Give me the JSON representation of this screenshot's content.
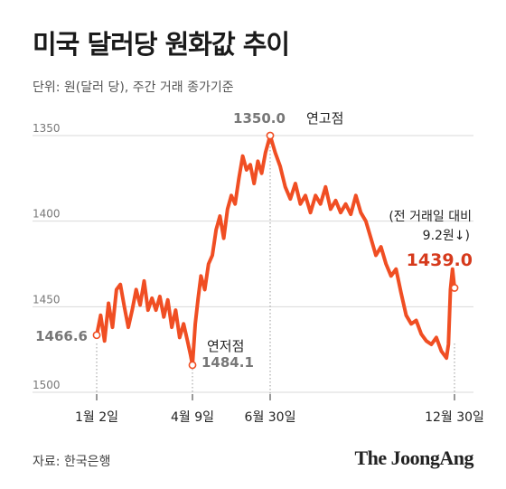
{
  "header": {
    "title": "미국 달러당 원화값 추이",
    "subtitle": "단위: 원(달러 당), 주간 거래 종가기준"
  },
  "footer": {
    "source": "자료: 한국은행",
    "logo": "The JoongAng"
  },
  "colors": {
    "line": "#f04e23",
    "highlight": "#d63a1c",
    "grid": "#d9d9d9",
    "guide": "#999999",
    "text": "#333333"
  },
  "chart_data": {
    "type": "line",
    "y_axis": {
      "inverted": true,
      "ylim": [
        1350,
        1500
      ],
      "ticks": [
        "1350",
        "1400",
        "1450",
        "1500"
      ],
      "grid": true
    },
    "x_ticks": [
      "1월 2일",
      "4월 9일",
      "6월 30일",
      "12월 30일"
    ],
    "x_tick_dates": [
      "2025-01-02",
      "2025-04-09",
      "2025-06-30",
      "2025-12-30"
    ],
    "series": [
      {
        "points": [
          [
            "2025-01-02",
            1466.6
          ],
          [
            "2025-01-06",
            1455
          ],
          [
            "2025-01-10",
            1470
          ],
          [
            "2025-01-14",
            1448
          ],
          [
            "2025-01-18",
            1462
          ],
          [
            "2025-01-22",
            1440
          ],
          [
            "2025-01-26",
            1437
          ],
          [
            "2025-01-30",
            1450
          ],
          [
            "2025-02-03",
            1462
          ],
          [
            "2025-02-07",
            1452
          ],
          [
            "2025-02-11",
            1440
          ],
          [
            "2025-02-15",
            1449
          ],
          [
            "2025-02-19",
            1435
          ],
          [
            "2025-02-23",
            1452
          ],
          [
            "2025-02-27",
            1445
          ],
          [
            "2025-03-03",
            1452
          ],
          [
            "2025-03-07",
            1444
          ],
          [
            "2025-03-11",
            1456
          ],
          [
            "2025-03-15",
            1446
          ],
          [
            "2025-03-19",
            1462
          ],
          [
            "2025-03-23",
            1452
          ],
          [
            "2025-03-27",
            1468
          ],
          [
            "2025-03-31",
            1460
          ],
          [
            "2025-04-04",
            1470
          ],
          [
            "2025-04-07",
            1478
          ],
          [
            "2025-04-09",
            1484.1
          ],
          [
            "2025-04-12",
            1460
          ],
          [
            "2025-04-15",
            1445
          ],
          [
            "2025-04-18",
            1432
          ],
          [
            "2025-04-22",
            1440
          ],
          [
            "2025-04-26",
            1425
          ],
          [
            "2025-04-30",
            1420
          ],
          [
            "2025-05-04",
            1405
          ],
          [
            "2025-05-08",
            1397
          ],
          [
            "2025-05-12",
            1410
          ],
          [
            "2025-05-16",
            1393
          ],
          [
            "2025-05-20",
            1385
          ],
          [
            "2025-05-24",
            1390
          ],
          [
            "2025-05-28",
            1375
          ],
          [
            "2025-06-01",
            1362
          ],
          [
            "2025-06-05",
            1370
          ],
          [
            "2025-06-09",
            1367
          ],
          [
            "2025-06-13",
            1378
          ],
          [
            "2025-06-17",
            1365
          ],
          [
            "2025-06-21",
            1372
          ],
          [
            "2025-06-25",
            1360
          ],
          [
            "2025-06-30",
            1350.0
          ],
          [
            "2025-07-05",
            1360
          ],
          [
            "2025-07-10",
            1368
          ],
          [
            "2025-07-15",
            1380
          ],
          [
            "2025-07-20",
            1387
          ],
          [
            "2025-07-25",
            1378
          ],
          [
            "2025-07-30",
            1390
          ],
          [
            "2025-08-04",
            1385
          ],
          [
            "2025-08-09",
            1395
          ],
          [
            "2025-08-14",
            1385
          ],
          [
            "2025-08-19",
            1390
          ],
          [
            "2025-08-24",
            1380
          ],
          [
            "2025-08-29",
            1393
          ],
          [
            "2025-09-03",
            1388
          ],
          [
            "2025-09-08",
            1395
          ],
          [
            "2025-09-13",
            1390
          ],
          [
            "2025-09-18",
            1396
          ],
          [
            "2025-09-23",
            1385
          ],
          [
            "2025-09-28",
            1395
          ],
          [
            "2025-10-03",
            1400
          ],
          [
            "2025-10-08",
            1410
          ],
          [
            "2025-10-13",
            1420
          ],
          [
            "2025-10-18",
            1415
          ],
          [
            "2025-10-23",
            1425
          ],
          [
            "2025-10-28",
            1432
          ],
          [
            "2025-11-02",
            1428
          ],
          [
            "2025-11-07",
            1442
          ],
          [
            "2025-11-12",
            1455
          ],
          [
            "2025-11-17",
            1460
          ],
          [
            "2025-11-22",
            1458
          ],
          [
            "2025-11-27",
            1466
          ],
          [
            "2025-12-02",
            1470
          ],
          [
            "2025-12-07",
            1472
          ],
          [
            "2025-12-12",
            1468
          ],
          [
            "2025-12-17",
            1476
          ],
          [
            "2025-12-22",
            1480
          ],
          [
            "2025-12-24",
            1472
          ],
          [
            "2025-12-26",
            1440
          ],
          [
            "2025-12-28",
            1428
          ],
          [
            "2025-12-30",
            1439.0
          ]
        ]
      }
    ],
    "annotations": {
      "start": {
        "date": "2025-01-02",
        "value": "1466.6"
      },
      "low": {
        "date": "2025-04-09",
        "label": "연저점",
        "value": "1484.1"
      },
      "high": {
        "date": "2025-06-30",
        "value": "1350.0",
        "label": "연고점"
      },
      "end": {
        "date": "2025-12-30",
        "change_line1": "(전 거래일 대비",
        "change_line2": "9.2원↓)",
        "value": "1439.0"
      }
    }
  }
}
